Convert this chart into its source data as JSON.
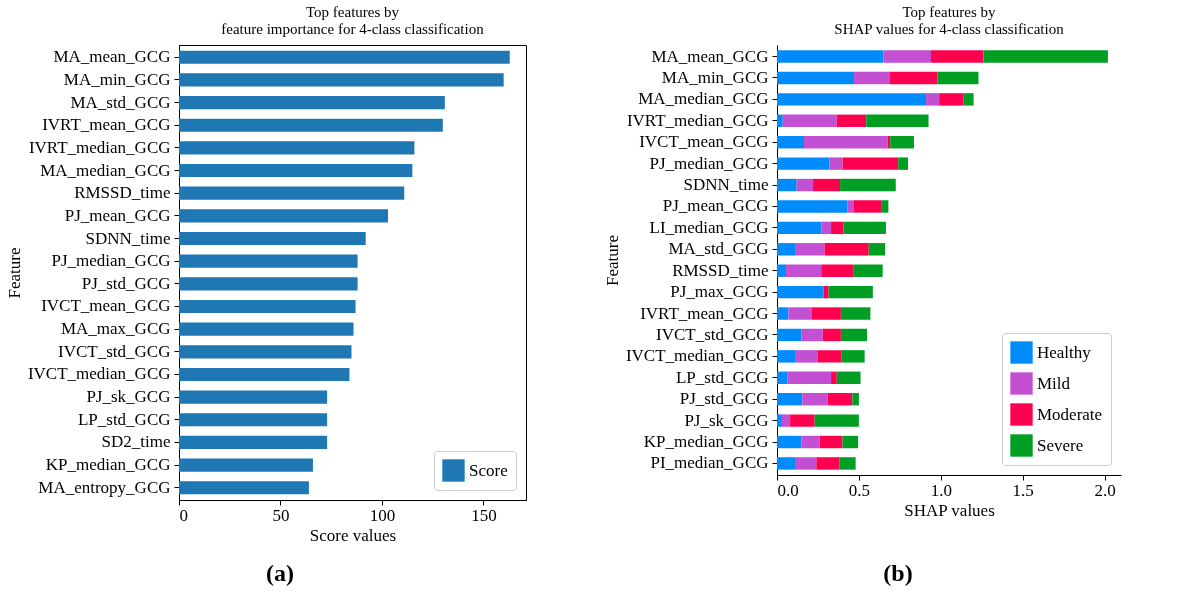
{
  "chart_data": [
    {
      "type": "bar",
      "orientation": "horizontal",
      "title": "Top features by\nfeature importance for 4-class classification",
      "xlabel": "Score values",
      "ylabel": "Feature",
      "categories": [
        "MA_mean_GCG",
        "MA_min_GCG",
        "MA_std_GCG",
        "IVRT_mean_GCG",
        "IVRT_median_GCG",
        "MA_median_GCG",
        "RMSSD_time",
        "PJ_mean_GCG",
        "SDNN_time",
        "PJ_median_GCG",
        "PJ_std_GCG",
        "IVCT_mean_GCG",
        "MA_max_GCG",
        "IVCT_std_GCG",
        "IVCT_median_GCG",
        "PJ_sk_GCG",
        "LP_std_GCG",
        "SD2_time",
        "KP_median_GCG",
        "MA_entropy_GCG"
      ],
      "series": [
        {
          "name": "Score",
          "color": "#1f77b4",
          "values": [
            163,
            160,
            131,
            130,
            116,
            115,
            111,
            103,
            92,
            88,
            88,
            87,
            86,
            85,
            84,
            73,
            73,
            73,
            66,
            64
          ]
        }
      ],
      "xlim": [
        0,
        171
      ],
      "xticks": [
        0,
        50,
        100,
        150
      ],
      "legend": "bottom right",
      "grid": false,
      "annotations": [
        "(a)"
      ]
    },
    {
      "type": "bar",
      "orientation": "horizontal",
      "stacked": true,
      "title": "Top features by\nSHAP values for 4-class classification",
      "xlabel": "SHAP values",
      "ylabel": "Feature",
      "categories": [
        "MA_mean_GCG",
        "MA_min_GCG",
        "MA_median_GCG",
        "IVRT_median_GCG",
        "IVCT_mean_GCG",
        "PJ_median_GCG",
        "SDNN_time",
        "PJ_mean_GCG",
        "LI_median_GCG",
        "MA_std_GCG",
        "RMSSD_time",
        "PJ_max_GCG",
        "IVRT_mean_GCG",
        "IVCT_std_GCG",
        "IVCT_median_GCG",
        "LP_std_GCG",
        "PJ_std_GCG",
        "PJ_sk_GCG",
        "KP_median_GCG",
        "PI_median_GCG"
      ],
      "series": [
        {
          "name": "Healthy",
          "color": "#008bfb",
          "values": [
            0.65,
            0.47,
            0.91,
            0.035,
            0.165,
            0.32,
            0.12,
            0.43,
            0.27,
            0.11,
            0.055,
            0.285,
            0.07,
            0.15,
            0.115,
            0.065,
            0.155,
            0.03,
            0.15,
            0.11
          ]
        },
        {
          "name": "Mild",
          "color": "#c34fd3",
          "values": [
            0.29,
            0.22,
            0.08,
            0.33,
            0.51,
            0.08,
            0.1,
            0.04,
            0.06,
            0.18,
            0.215,
            0,
            0.14,
            0.13,
            0.135,
            0.265,
            0.155,
            0.05,
            0.11,
            0.13
          ]
        },
        {
          "name": "Moderate",
          "color": "#ff0051",
          "values": [
            0.32,
            0.29,
            0.15,
            0.18,
            0.016,
            0.34,
            0.165,
            0.17,
            0.075,
            0.27,
            0.195,
            0.03,
            0.18,
            0.11,
            0.145,
            0.035,
            0.15,
            0.15,
            0.14,
            0.14
          ]
        },
        {
          "name": "Severe",
          "color": "#009e22",
          "values": [
            0.76,
            0.25,
            0.06,
            0.38,
            0.145,
            0.06,
            0.34,
            0.04,
            0.26,
            0.1,
            0.18,
            0.27,
            0.18,
            0.16,
            0.14,
            0.145,
            0.04,
            0.27,
            0.095,
            0.1
          ]
        }
      ],
      "xlim": [
        0,
        2.1
      ],
      "xticks": [
        {
          "value": 0,
          "label": "0.0"
        },
        {
          "value": 0.5,
          "label": "0.5"
        },
        {
          "value": 1,
          "label": "1.0"
        },
        {
          "value": 1.5,
          "label": "1.5"
        },
        {
          "value": 2,
          "label": "2.0"
        }
      ],
      "legend": "bottom right",
      "grid": false,
      "annotations": [
        "(b)"
      ]
    }
  ]
}
